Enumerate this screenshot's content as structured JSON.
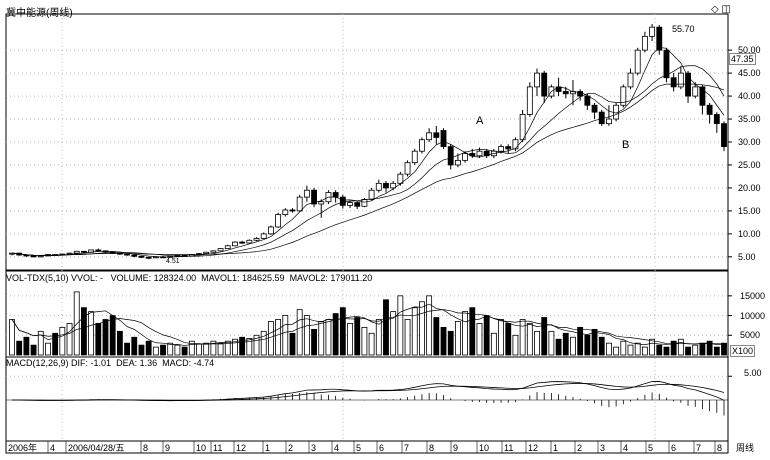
{
  "title": "冀中能源(周线)",
  "corner_icons": [
    "diamond-icon",
    "window-icon"
  ],
  "main": {
    "price_ticks": [
      "50.00",
      "45.00",
      "40.00",
      "35.00",
      "30.00",
      "25.00",
      "20.00",
      "15.00",
      "10.00",
      "5.00"
    ],
    "current_price": "47.35",
    "high_label": "55.70",
    "low_label": "4.51",
    "annotation_a": "A",
    "annotation_b": "B"
  },
  "vol": {
    "header_name": "VOL-TDX(5,10)",
    "vvol": "VVOL: -",
    "volume": "VOLUME: 128324.00",
    "mavol1": "MAVOL1: 184625.59",
    "mavol2": "MAVOL2: 179011.20",
    "ticks": [
      "15000",
      "10000",
      "5000"
    ],
    "unit": "X100"
  },
  "macd": {
    "header_name": "MACD(12,26,9)",
    "dif": "DIF: -1.01",
    "dea": "DEA: 1.36",
    "macd": "MACD: -4.74",
    "tick": "5.00"
  },
  "time_axis": {
    "labels": [
      "2006年",
      "4",
      "2006/04/28/五",
      "8",
      "9",
      "10",
      "11",
      "12",
      "1",
      "2",
      "3",
      "4",
      "5",
      "6",
      "7",
      "8",
      "9",
      "10",
      "11",
      "12",
      "1",
      "2",
      "3",
      "4",
      "5",
      "6",
      "7",
      "8"
    ],
    "period": "周线"
  },
  "chart_data": {
    "type": "candlestick",
    "ylim": [
      3,
      57
    ],
    "candles": [
      [
        5.6,
        5.8,
        5.9,
        5.3
      ],
      [
        5.8,
        5.4,
        5.9,
        5.2
      ],
      [
        5.4,
        5.2,
        5.5,
        5.0
      ],
      [
        5.2,
        5.0,
        5.3,
        4.9
      ],
      [
        5.0,
        5.2,
        5.3,
        4.9
      ],
      [
        5.2,
        5.5,
        5.6,
        5.1
      ],
      [
        5.5,
        5.4,
        5.6,
        5.2
      ],
      [
        5.4,
        5.6,
        5.7,
        5.3
      ],
      [
        5.6,
        5.8,
        5.9,
        5.5
      ],
      [
        5.8,
        6.2,
        6.3,
        5.7
      ],
      [
        6.2,
        6.0,
        6.3,
        5.8
      ],
      [
        6.0,
        6.5,
        6.6,
        5.9
      ],
      [
        6.5,
        6.3,
        6.8,
        6.1
      ],
      [
        6.3,
        6.1,
        6.4,
        5.9
      ],
      [
        6.1,
        5.8,
        6.2,
        5.6
      ],
      [
        5.8,
        5.6,
        5.9,
        5.4
      ],
      [
        5.6,
        5.4,
        5.7,
        5.2
      ],
      [
        5.4,
        5.1,
        5.5,
        4.9
      ],
      [
        5.1,
        4.9,
        5.2,
        4.7
      ],
      [
        4.9,
        4.8,
        5.0,
        4.5
      ],
      [
        4.8,
        5.0,
        5.1,
        4.7
      ],
      [
        5.0,
        4.9,
        5.2,
        4.8
      ],
      [
        4.9,
        5.1,
        5.2,
        4.8
      ],
      [
        5.1,
        5.3,
        5.4,
        5.0
      ],
      [
        5.3,
        5.2,
        5.4,
        5.1
      ],
      [
        5.2,
        5.5,
        5.6,
        5.1
      ],
      [
        5.5,
        5.7,
        5.8,
        5.4
      ],
      [
        5.7,
        6.0,
        6.1,
        5.6
      ],
      [
        6.0,
        6.3,
        6.4,
        5.9
      ],
      [
        6.3,
        6.8,
        6.9,
        6.2
      ],
      [
        6.8,
        7.4,
        7.6,
        6.7
      ],
      [
        7.4,
        8.2,
        8.4,
        7.3
      ],
      [
        8.2,
        8.0,
        8.5,
        7.8
      ],
      [
        8.0,
        8.6,
        8.8,
        7.9
      ],
      [
        8.6,
        9.0,
        9.3,
        8.4
      ],
      [
        9.0,
        10.0,
        10.3,
        8.9
      ],
      [
        10.0,
        11.5,
        11.8,
        9.8
      ],
      [
        11.5,
        14.2,
        14.6,
        11.3
      ],
      [
        14.2,
        15.2,
        15.6,
        13.8
      ],
      [
        15.2,
        15.0,
        15.6,
        14.6
      ],
      [
        15.0,
        18.0,
        18.5,
        14.8
      ],
      [
        18.0,
        19.5,
        20.5,
        17.0
      ],
      [
        19.5,
        16.5,
        20.0,
        15.8
      ],
      [
        16.5,
        17.0,
        17.5,
        13.5
      ],
      [
        17.0,
        19.0,
        19.5,
        16.5
      ],
      [
        19.0,
        18.0,
        19.5,
        16.8
      ],
      [
        18.0,
        16.2,
        18.5,
        15.5
      ],
      [
        16.2,
        16.8,
        17.2,
        15.6
      ],
      [
        16.8,
        16.0,
        17.2,
        15.4
      ],
      [
        16.0,
        17.5,
        17.8,
        15.8
      ],
      [
        17.5,
        19.5,
        20.0,
        17.3
      ],
      [
        19.5,
        21.0,
        21.8,
        19.0
      ],
      [
        21.0,
        20.0,
        21.5,
        19.0
      ],
      [
        20.0,
        21.0,
        21.5,
        19.5
      ],
      [
        21.0,
        23.0,
        23.5,
        20.5
      ],
      [
        23.0,
        25.5,
        26.0,
        22.5
      ],
      [
        25.5,
        28.0,
        28.5,
        25.0
      ],
      [
        28.0,
        30.5,
        31.0,
        27.5
      ],
      [
        30.5,
        32.0,
        33.0,
        30.0
      ],
      [
        32.0,
        31.0,
        33.5,
        29.5
      ],
      [
        32.5,
        29.0,
        33.0,
        28.5
      ],
      [
        29.0,
        25.0,
        29.5,
        24.0
      ],
      [
        25.0,
        26.0,
        27.5,
        24.5
      ],
      [
        26.0,
        27.5,
        28.0,
        25.5
      ],
      [
        27.5,
        27.0,
        28.5,
        26.5
      ],
      [
        27.0,
        28.0,
        28.8,
        26.5
      ],
      [
        28.0,
        27.0,
        28.5,
        26.5
      ],
      [
        27.0,
        28.0,
        28.5,
        26.5
      ],
      [
        28.0,
        29.0,
        29.5,
        27.5
      ],
      [
        29.0,
        28.5,
        29.5,
        27.5
      ],
      [
        28.5,
        30.5,
        31.0,
        28.0
      ],
      [
        30.5,
        36.0,
        37.0,
        30.0
      ],
      [
        36.0,
        42.0,
        43.0,
        35.5
      ],
      [
        42.0,
        45.0,
        46.0,
        40.0
      ],
      [
        45.0,
        40.0,
        45.5,
        38.5
      ],
      [
        40.0,
        42.0,
        42.5,
        39.5
      ],
      [
        42.0,
        41.0,
        44.0,
        40.0
      ],
      [
        41.0,
        40.5,
        42.0,
        39.5
      ],
      [
        40.5,
        41.0,
        43.5,
        38.0
      ],
      [
        41.0,
        40.0,
        41.5,
        39.0
      ],
      [
        40.0,
        38.0,
        40.5,
        37.0
      ],
      [
        38.0,
        36.5,
        38.5,
        35.0
      ],
      [
        36.5,
        34.0,
        37.0,
        33.5
      ],
      [
        34.0,
        35.0,
        38.0,
        33.5
      ],
      [
        35.0,
        38.0,
        38.5,
        34.5
      ],
      [
        38.0,
        42.0,
        42.5,
        37.5
      ],
      [
        42.0,
        45.0,
        46.0,
        41.5
      ],
      [
        45.0,
        50.0,
        50.5,
        44.5
      ],
      [
        50.0,
        53.0,
        54.0,
        49.5
      ],
      [
        53.0,
        55.0,
        55.7,
        52.0
      ],
      [
        55.0,
        50.0,
        55.5,
        49.0
      ],
      [
        50.0,
        44.0,
        50.5,
        43.0
      ],
      [
        44.0,
        42.0,
        45.0,
        41.0
      ],
      [
        42.0,
        45.0,
        46.5,
        41.5
      ],
      [
        45.0,
        40.0,
        45.5,
        38.5
      ],
      [
        40.0,
        42.0,
        43.0,
        39.5
      ],
      [
        42.0,
        38.0,
        42.5,
        36.0
      ],
      [
        38.0,
        36.0,
        38.5,
        34.0
      ],
      [
        36.0,
        34.0,
        36.5,
        32.0
      ],
      [
        34.0,
        29.0,
        34.5,
        28.0
      ]
    ],
    "ma_lines": 3,
    "volume_values": [
      9000,
      3500,
      4500,
      2500,
      6000,
      3000,
      5500,
      7000,
      8000,
      16000,
      12000,
      11000,
      8000,
      9000,
      10000,
      6000,
      3000,
      4500,
      2500,
      3500,
      2000,
      2500,
      3000,
      2500,
      2000,
      3500,
      2800,
      3000,
      3500,
      3000,
      3500,
      4000,
      4500,
      4200,
      5000,
      6000,
      8500,
      9000,
      10000,
      5500,
      11500,
      10000,
      6500,
      8500,
      9000,
      10500,
      12000,
      8000,
      9500,
      7000,
      5500,
      9000,
      14000,
      11000,
      15000,
      9000,
      12000,
      13500,
      15000,
      9500,
      7000,
      6000,
      8500,
      11000,
      12000,
      8000,
      10000,
      5500,
      9000,
      8000,
      5000,
      9000,
      8000,
      6000,
      9500,
      6000,
      4000,
      5500,
      4500,
      7000,
      5000,
      6500,
      4500,
      3000,
      2000,
      3500,
      2500,
      3000,
      2000,
      4000,
      2500,
      2000,
      3500,
      4000,
      2000,
      2500,
      3000,
      3500,
      2000,
      3000
    ],
    "vol_ylim": [
      0,
      18000
    ],
    "macd_ylim": [
      -8,
      8
    ]
  }
}
